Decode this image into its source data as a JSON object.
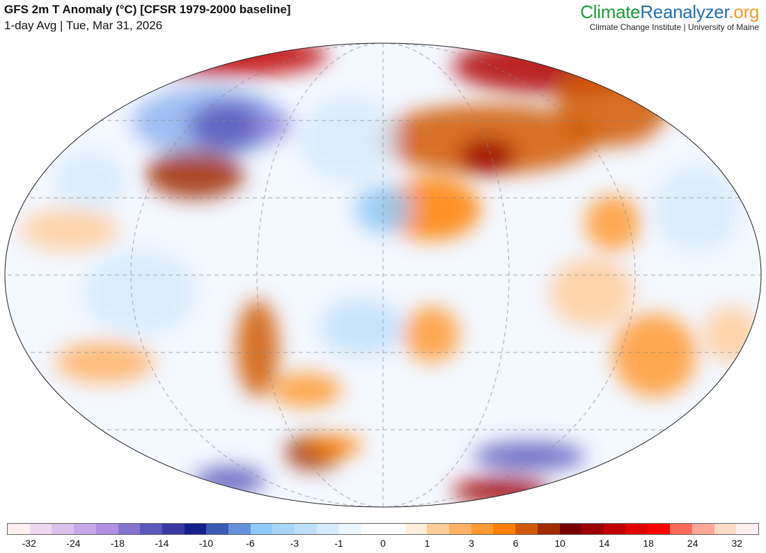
{
  "header": {
    "title": "GFS 2m T Anomaly (°C) [CFSR 1979-2000 baseline]",
    "subtitle": "1-day Avg | Tue, Mar 31, 2026"
  },
  "logo": {
    "part1": "Climate",
    "part2": "Reanalyzer",
    "part3": ".org",
    "institution": "Climate Change Institute | University of Maine"
  },
  "colorbar": {
    "colors": [
      "#fff0f0",
      "#ecd8f0",
      "#dac0ec",
      "#c6a8e8",
      "#b08ee2",
      "#8474cc",
      "#5b57bb",
      "#3a3aa4",
      "#141f8e",
      "#3a5ab4",
      "#6592d8",
      "#8fcaf8",
      "#a8d6fa",
      "#bfe0fc",
      "#d6ebfd",
      "#ecf6ff",
      "#ffffff",
      "#ffffff",
      "#ffeedc",
      "#ffcc9c",
      "#ffb266",
      "#ff9a33",
      "#ff8000",
      "#d05800",
      "#a02c00",
      "#780000",
      "#9a0000",
      "#c00000",
      "#e00000",
      "#ff0000",
      "#ff6a5a",
      "#ffa898",
      "#ffdcc8",
      "#fff0f0"
    ],
    "labels": [
      "-32",
      "-24",
      "-18",
      "-14",
      "-10",
      "-6",
      "-3",
      "-1",
      "0",
      "1",
      "3",
      "6",
      "10",
      "14",
      "18",
      "24",
      "32"
    ]
  }
}
